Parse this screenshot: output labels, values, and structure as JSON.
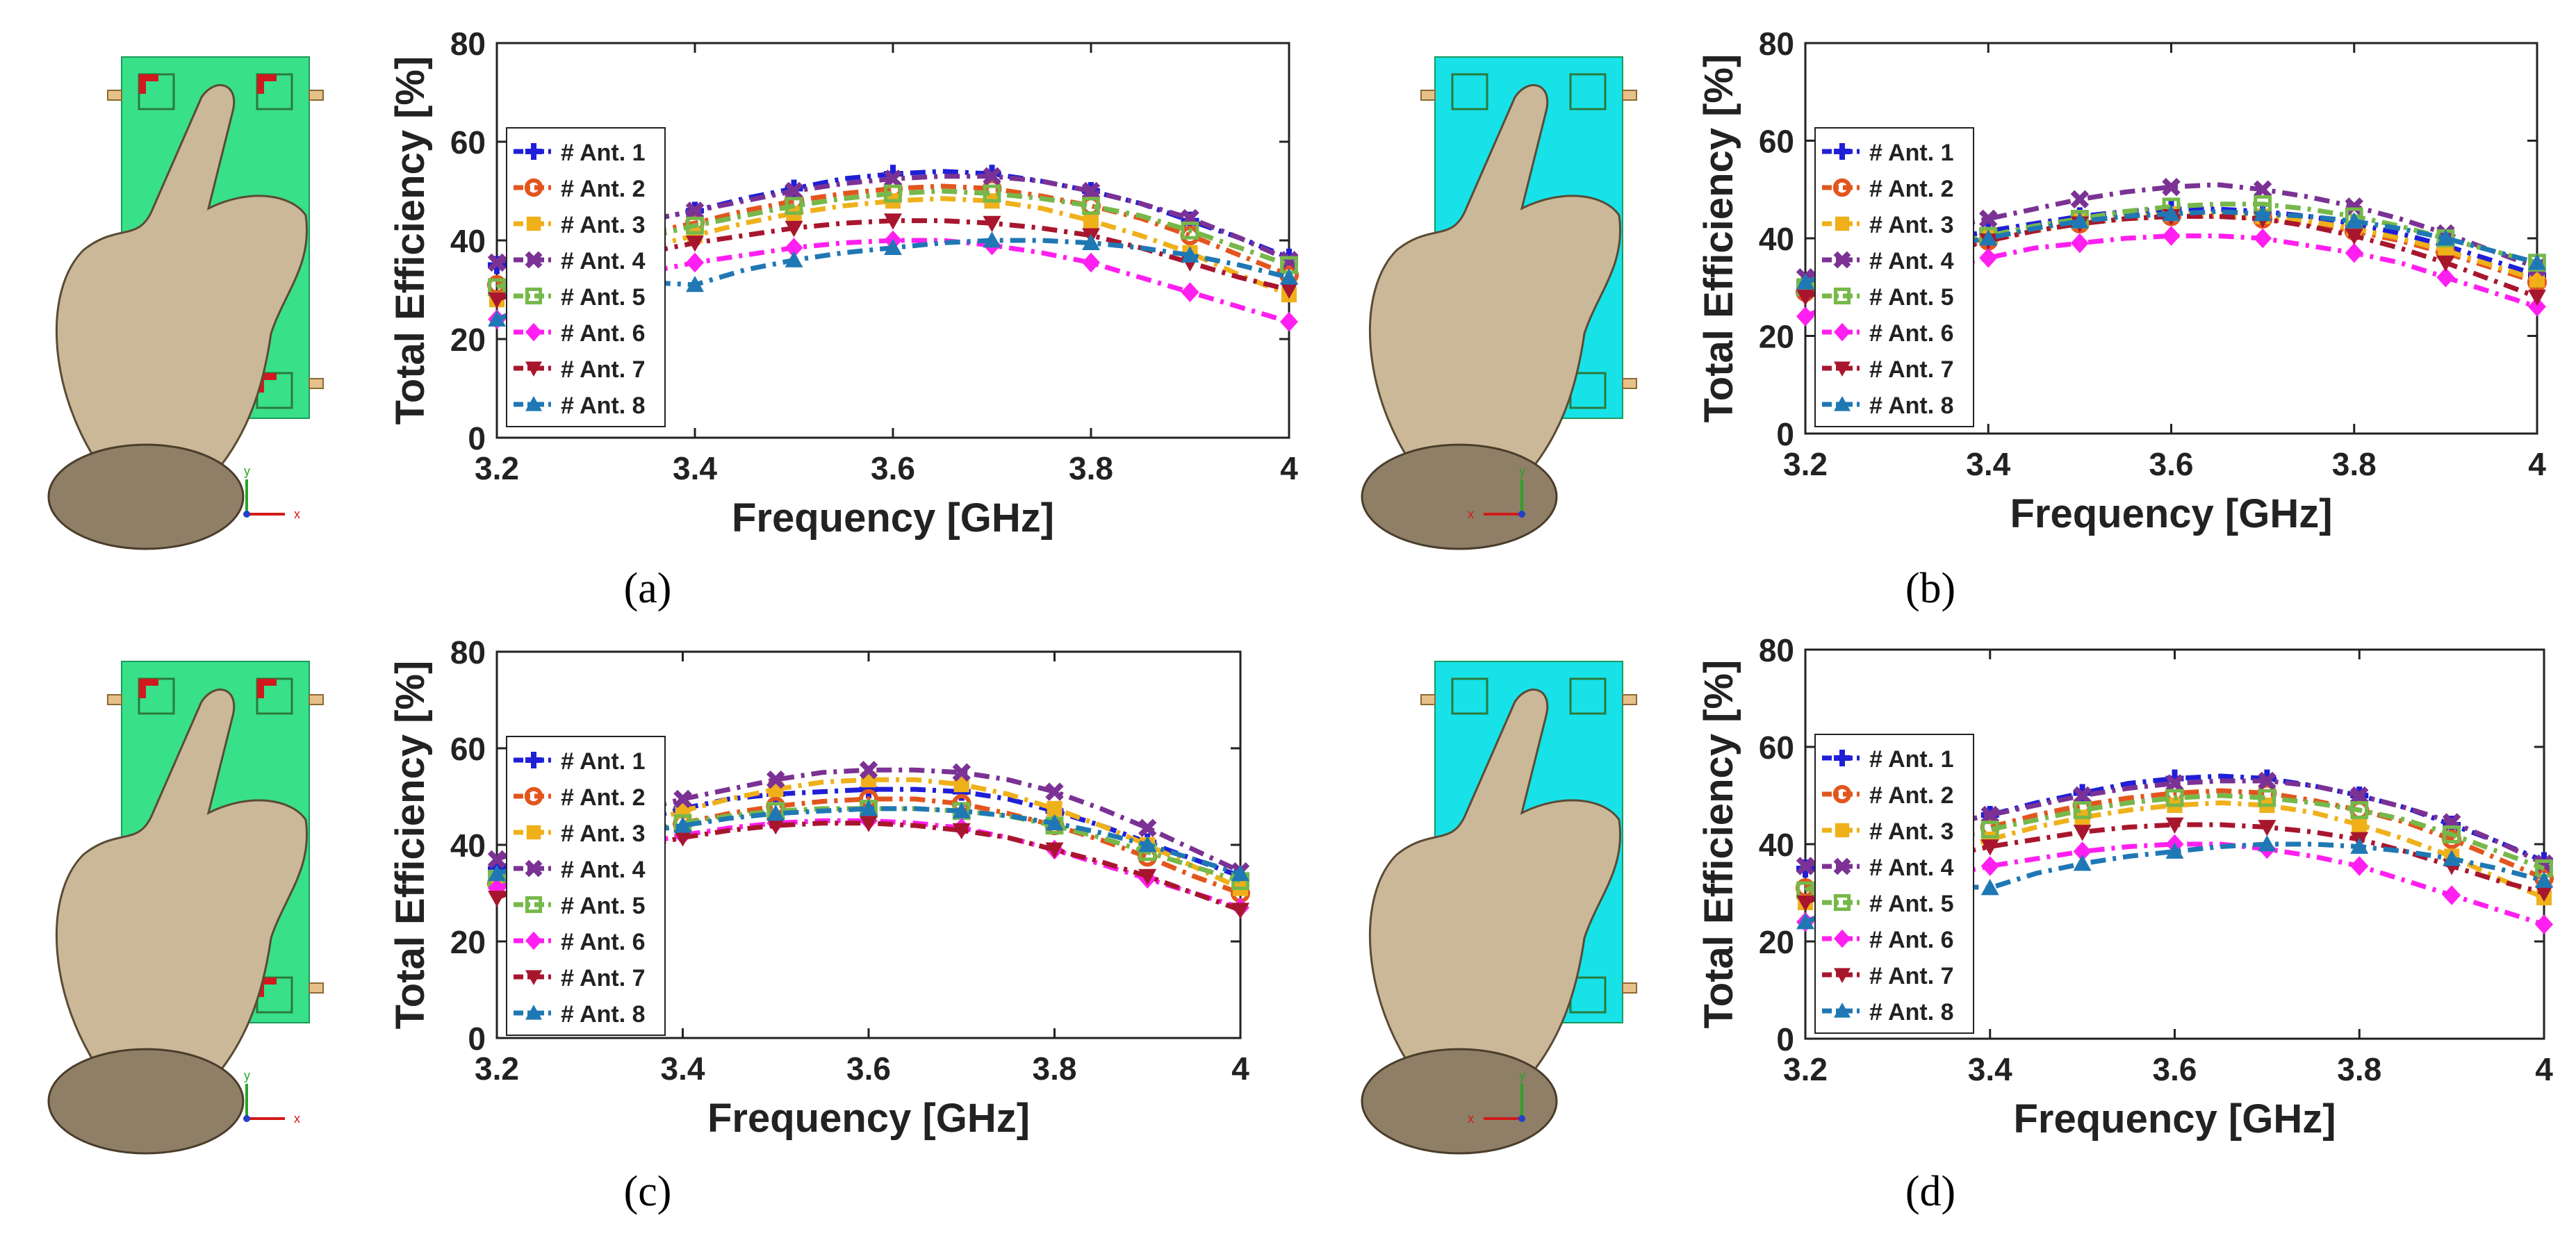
{
  "colors": {
    "series": [
      "#1f1fd8",
      "#e2561e",
      "#efb01a",
      "#7b3294",
      "#76b84a",
      "#ff1ff0",
      "#a8162e",
      "#1f78b4"
    ],
    "board_green": "#39e08a",
    "board_cyan": "#17e2e8",
    "feed_red": "#d1181f",
    "hand": "#cbb898"
  },
  "markers": [
    "plus",
    "circle",
    "square",
    "x",
    "square-open",
    "diamond",
    "triangle-down",
    "triangle-up"
  ],
  "chart_data": [
    {
      "panel": "(a)",
      "type": "line",
      "xlabel": "Frequency [GHz]",
      "ylabel": "Total Efficiency [%]",
      "xlim": [
        3.2,
        4.0
      ],
      "ylim": [
        0,
        80
      ],
      "xticks": [
        "3.2",
        "3.4",
        "3.6",
        "3.8",
        "4"
      ],
      "yticks": [
        "0",
        "20",
        "40",
        "60",
        "80"
      ],
      "legend_position": "left",
      "x": [
        3.2,
        3.25,
        3.3,
        3.35,
        3.4,
        3.45,
        3.5,
        3.55,
        3.6,
        3.65,
        3.7,
        3.75,
        3.8,
        3.85,
        3.9,
        3.95,
        4.0
      ],
      "series": [
        {
          "name": "# Ant. 1",
          "values": [
            35,
            38,
            41,
            44,
            46,
            48.5,
            50.5,
            52.5,
            53.5,
            54,
            53.5,
            52,
            50,
            47.5,
            44,
            40.5,
            36.5
          ]
        },
        {
          "name": "# Ant. 2",
          "values": [
            31,
            35,
            38.5,
            41.5,
            43.5,
            46,
            48,
            49.5,
            50.5,
            51,
            50.5,
            49,
            47,
            44.5,
            41,
            37,
            33
          ]
        },
        {
          "name": "# Ant. 3",
          "values": [
            28,
            32,
            35.5,
            38.5,
            41,
            43.5,
            45.5,
            47,
            48,
            48.5,
            48,
            46.5,
            44,
            41,
            37.5,
            33,
            29
          ]
        },
        {
          "name": "# Ant. 4",
          "values": [
            35.5,
            38.5,
            41.5,
            44,
            46,
            48,
            50,
            51.5,
            52.5,
            53,
            53,
            52,
            50,
            47.5,
            44.5,
            40.5,
            36
          ]
        },
        {
          "name": "# Ant. 5",
          "values": [
            30.5,
            34,
            37.5,
            40.5,
            43,
            45,
            47,
            48.5,
            49.5,
            50,
            49.5,
            48.5,
            47,
            45,
            42,
            38.5,
            35
          ]
        },
        {
          "name": "# Ant. 6",
          "values": [
            24,
            28,
            31,
            33.5,
            35.5,
            37,
            38.5,
            39.5,
            40,
            40,
            39,
            37.5,
            35.5,
            32.5,
            29.5,
            26.5,
            23.5
          ]
        },
        {
          "name": "# Ant. 7",
          "values": [
            28,
            31.5,
            35,
            37.5,
            39.5,
            41,
            42.5,
            43.5,
            44,
            44,
            43.5,
            42.5,
            41,
            38.5,
            35.5,
            32.5,
            30
          ]
        },
        {
          "name": "# Ant. 8",
          "values": [
            24,
            27.5,
            30,
            31.5,
            31,
            34,
            36,
            37.5,
            38.5,
            39.5,
            40,
            40,
            39.5,
            38.5,
            37,
            35,
            32.5
          ]
        }
      ]
    },
    {
      "panel": "(b)",
      "type": "line",
      "xlabel": "Frequency [GHz]",
      "ylabel": "Total Efficiency [%]",
      "xlim": [
        3.2,
        4.0
      ],
      "ylim": [
        0,
        80
      ],
      "xticks": [
        "3.2",
        "3.4",
        "3.6",
        "3.8",
        "4"
      ],
      "yticks": [
        "0",
        "20",
        "40",
        "60",
        "80"
      ],
      "legend_position": "left",
      "x": [
        3.2,
        3.25,
        3.3,
        3.35,
        3.4,
        3.45,
        3.5,
        3.55,
        3.6,
        3.65,
        3.7,
        3.75,
        3.8,
        3.85,
        3.9,
        3.95,
        4.0
      ],
      "series": [
        {
          "name": "# Ant. 1",
          "values": [
            31,
            34,
            37,
            39.5,
            41.5,
            43,
            44.5,
            45.5,
            46,
            46,
            45.5,
            44.5,
            43,
            41,
            38.5,
            35.5,
            32.5
          ]
        },
        {
          "name": "# Ant. 2",
          "values": [
            29,
            32,
            35,
            37.5,
            39.5,
            41.5,
            43,
            44,
            44.5,
            44.5,
            44,
            43,
            41.5,
            39.5,
            37,
            34,
            31
          ]
        },
        {
          "name": "# Ant. 3",
          "values": [
            30,
            33,
            36,
            38.5,
            40.5,
            42,
            43.5,
            44.5,
            45,
            45,
            44.5,
            43.5,
            42,
            40,
            37.5,
            34.5,
            31.5
          ]
        },
        {
          "name": "# Ant. 4",
          "values": [
            32,
            35.5,
            39,
            42,
            44,
            46,
            48,
            49.5,
            50.5,
            51,
            50,
            48.5,
            46.5,
            44,
            41,
            37.5,
            34
          ]
        },
        {
          "name": "# Ant. 5",
          "values": [
            30,
            33,
            36,
            38.5,
            40.5,
            42.5,
            44,
            45.5,
            46.5,
            47,
            47,
            46,
            44.5,
            42.5,
            40,
            37.5,
            35
          ]
        },
        {
          "name": "# Ant. 6",
          "values": [
            24,
            28,
            31.5,
            34,
            36,
            38,
            39,
            40,
            40.5,
            40.5,
            40,
            38.5,
            37,
            35,
            32,
            29,
            26
          ]
        },
        {
          "name": "# Ant. 7",
          "values": [
            28,
            31,
            34,
            37,
            39.5,
            41.5,
            43,
            44,
            44.5,
            44.5,
            44,
            42.5,
            40.5,
            38,
            35,
            31.5,
            28
          ]
        },
        {
          "name": "# Ant. 8",
          "values": [
            31,
            34,
            36.5,
            38.5,
            40,
            42,
            43.5,
            44.5,
            45,
            45.5,
            45,
            44.5,
            43.5,
            42,
            40,
            37.5,
            35
          ]
        }
      ]
    },
    {
      "panel": "(c)",
      "type": "line",
      "xlabel": "Frequency [GHz]",
      "ylabel": "Total Efficiency [%]",
      "xlim": [
        3.2,
        4.0
      ],
      "ylim": [
        0,
        80
      ],
      "xticks": [
        "3.2",
        "3.4",
        "3.6",
        "3.8",
        "4"
      ],
      "yticks": [
        "0",
        "20",
        "40",
        "60",
        "80"
      ],
      "legend_position": "left",
      "x": [
        3.2,
        3.25,
        3.3,
        3.35,
        3.4,
        3.45,
        3.5,
        3.55,
        3.6,
        3.65,
        3.7,
        3.75,
        3.8,
        3.85,
        3.9,
        3.95,
        4.0
      ],
      "series": [
        {
          "name": "# Ant. 1",
          "values": [
            35,
            38.5,
            42,
            45,
            47.5,
            49.5,
            50.5,
            51,
            51.5,
            51.5,
            51,
            49.5,
            47,
            44,
            40.5,
            37,
            33.5
          ]
        },
        {
          "name": "# Ant. 2",
          "values": [
            32,
            35.5,
            39,
            42,
            44.5,
            46.5,
            48,
            49,
            49.5,
            49.5,
            48.5,
            46.5,
            44,
            41,
            37.5,
            33.5,
            30
          ]
        },
        {
          "name": "# Ant. 3",
          "values": [
            33,
            37,
            40.5,
            44,
            47,
            49.5,
            51.5,
            53,
            53.5,
            53.5,
            52.5,
            50.5,
            47.5,
            44,
            40,
            35.5,
            31
          ]
        },
        {
          "name": "# Ant. 4",
          "values": [
            37,
            40.5,
            44,
            47,
            49.5,
            51.5,
            53.5,
            55,
            55.5,
            55.5,
            55,
            53.5,
            51,
            47.5,
            43.5,
            39,
            34.5
          ]
        },
        {
          "name": "# Ant. 5",
          "values": [
            33,
            36.5,
            39.5,
            42.5,
            44.5,
            46,
            47,
            47.5,
            47.5,
            47.5,
            47,
            46,
            44,
            41.5,
            38.5,
            35.5,
            32.5
          ]
        },
        {
          "name": "# Ant. 6",
          "values": [
            31,
            34.5,
            37.5,
            40,
            42,
            43.5,
            44.5,
            45,
            45,
            44.5,
            43.5,
            41.5,
            39,
            36,
            33,
            30,
            27
          ]
        },
        {
          "name": "# Ant. 7",
          "values": [
            29,
            33,
            36.5,
            39.5,
            41.5,
            43,
            44,
            44.5,
            44.5,
            44,
            43,
            41.5,
            39,
            36.5,
            33.5,
            30,
            26.5
          ]
        },
        {
          "name": "# Ant. 8",
          "values": [
            34,
            37,
            40,
            42.5,
            44,
            45.5,
            46.5,
            47,
            47.5,
            47.5,
            47,
            46,
            44.5,
            42.5,
            40,
            37,
            34
          ]
        }
      ]
    },
    {
      "panel": "(d)",
      "type": "line",
      "xlabel": "Frequency [GHz]",
      "ylabel": "Total Efficiency [%]",
      "xlim": [
        3.2,
        4.0
      ],
      "ylim": [
        0,
        80
      ],
      "xticks": [
        "3.2",
        "3.4",
        "3.6",
        "3.8",
        "4"
      ],
      "yticks": [
        "0",
        "20",
        "40",
        "60",
        "80"
      ],
      "legend_position": "left",
      "x": [
        3.2,
        3.25,
        3.3,
        3.35,
        3.4,
        3.45,
        3.5,
        3.55,
        3.6,
        3.65,
        3.7,
        3.75,
        3.8,
        3.85,
        3.9,
        3.95,
        4.0
      ],
      "series": [
        {
          "name": "# Ant. 1",
          "values": [
            35,
            38,
            41,
            44,
            46,
            48.5,
            50.5,
            52.5,
            53.5,
            54,
            53.5,
            52,
            50,
            47.5,
            44,
            40.5,
            36.5
          ]
        },
        {
          "name": "# Ant. 2",
          "values": [
            31,
            35,
            38.5,
            41.5,
            43.5,
            46,
            48,
            49.5,
            50.5,
            51,
            50.5,
            49,
            47,
            44.5,
            41,
            37,
            33
          ]
        },
        {
          "name": "# Ant. 3",
          "values": [
            28,
            32,
            35.5,
            38.5,
            41,
            43.5,
            45.5,
            47,
            48,
            48.5,
            48,
            46.5,
            44,
            41,
            37.5,
            33,
            29
          ]
        },
        {
          "name": "# Ant. 4",
          "values": [
            35.5,
            38.5,
            41.5,
            44,
            46,
            48,
            50,
            51.5,
            52.5,
            53,
            53,
            52,
            50,
            47.5,
            44.5,
            40.5,
            36
          ]
        },
        {
          "name": "# Ant. 5",
          "values": [
            30.5,
            34,
            37.5,
            40.5,
            43,
            45,
            47,
            48.5,
            49.5,
            50,
            49.5,
            48.5,
            47,
            45,
            42,
            38.5,
            35
          ]
        },
        {
          "name": "# Ant. 6",
          "values": [
            24,
            28,
            31,
            33.5,
            35.5,
            37,
            38.5,
            39.5,
            40,
            40,
            39,
            37.5,
            35.5,
            32.5,
            29.5,
            26.5,
            23.5
          ]
        },
        {
          "name": "# Ant. 7",
          "values": [
            28,
            31.5,
            35,
            37.5,
            39.5,
            41,
            42.5,
            43.5,
            44,
            44,
            43.5,
            42.5,
            41,
            38.5,
            35.5,
            32.5,
            30
          ]
        },
        {
          "name": "# Ant. 8",
          "values": [
            24,
            27.5,
            30,
            31.5,
            31,
            34,
            36,
            37.5,
            38.5,
            39.5,
            40,
            40,
            39.5,
            38.5,
            37,
            35,
            32.5
          ]
        }
      ]
    }
  ],
  "hand_models": [
    {
      "panel": "(a)",
      "board": "green",
      "axes": [
        "y",
        "x"
      ],
      "x_direction": "right"
    },
    {
      "panel": "(b)",
      "board": "cyan",
      "axes": [
        "y",
        "x"
      ],
      "x_direction": "left"
    },
    {
      "panel": "(c)",
      "board": "green",
      "axes": [
        "y",
        "x"
      ],
      "x_direction": "right"
    },
    {
      "panel": "(d)",
      "board": "cyan",
      "axes": [
        "y",
        "x"
      ],
      "x_direction": "left"
    }
  ]
}
